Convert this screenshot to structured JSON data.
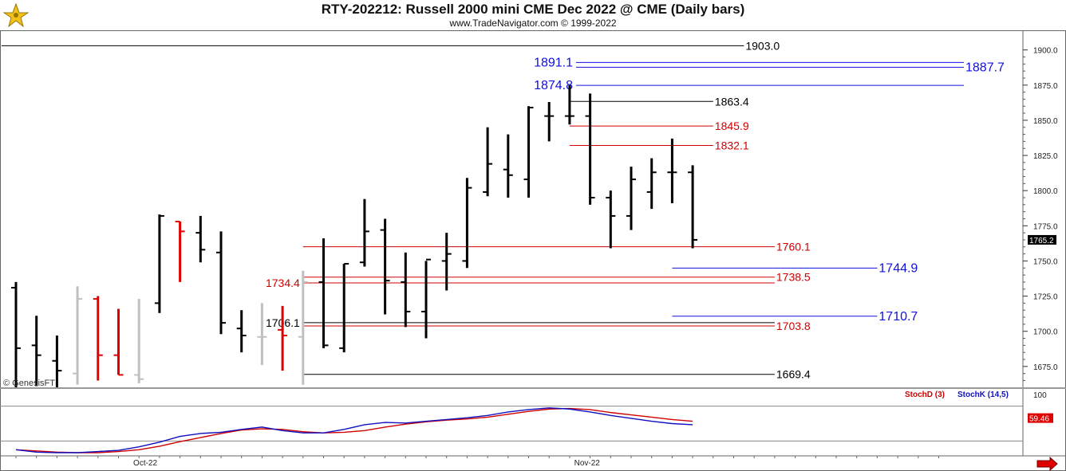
{
  "header": {
    "title": "RTY-202212:  Russell 2000 mini CME Dec 2022 @ CME  (Daily bars)",
    "subtitle": "www.TradeNavigator.com © 1999-2022"
  },
  "watermark": "© GenesisFT",
  "colors": {
    "up_bar": "#000000",
    "down_bar": "#e00000",
    "inside_bar": "#c0c0c0",
    "fib_red": "#d00000",
    "fib_blue": "#1010e0",
    "level_black": "#000000",
    "stoch_d": "#d00000",
    "stoch_k": "#1010c0",
    "price_tag_bg": "#000000",
    "stoch_tag_bg": "#e00000"
  },
  "chart_data": [
    {
      "type": "ohlc",
      "title": "RTY-202212:  Russell 2000 mini CME Dec 2022 @ CME  (Daily bars)",
      "y_axis_side": "right",
      "ylim": [
        1663,
        1910
      ],
      "yticks": [
        "1675.0",
        "1700.0",
        "1725.0",
        "1750.0",
        "1775.0",
        "1800.0",
        "1825.0",
        "1850.0",
        "1875.0",
        "1900.0"
      ],
      "x_labels": [
        {
          "label": "Oct-22",
          "bar_index": 6.5
        },
        {
          "label": "Nov-22",
          "bar_index": 28
        }
      ],
      "bars": [
        {
          "o": 1731,
          "h": 1735,
          "l": 1655,
          "c": 1688,
          "color": "up"
        },
        {
          "o": 1690,
          "h": 1711,
          "l": 1661,
          "c": 1683,
          "color": "up"
        },
        {
          "o": 1679,
          "h": 1697,
          "l": 1658,
          "c": 1672,
          "color": "up"
        },
        {
          "o": 1670,
          "h": 1732,
          "l": 1662,
          "c": 1723,
          "color": "inside"
        },
        {
          "o": 1723,
          "h": 1725,
          "l": 1665,
          "c": 1683,
          "color": "down"
        },
        {
          "o": 1683,
          "h": 1716,
          "l": 1669,
          "c": 1669,
          "color": "down"
        },
        {
          "o": 1669,
          "h": 1723,
          "l": 1663,
          "c": 1666,
          "color": "inside"
        },
        {
          "o": 1720,
          "h": 1783,
          "l": 1713,
          "c": 1782,
          "color": "up"
        },
        {
          "o": 1778,
          "h": 1778,
          "l": 1735,
          "c": 1771,
          "color": "down"
        },
        {
          "o": 1770,
          "h": 1782,
          "l": 1749,
          "c": 1758,
          "color": "up"
        },
        {
          "o": 1756,
          "h": 1771,
          "l": 1698,
          "c": 1706,
          "color": "up"
        },
        {
          "o": 1702,
          "h": 1715,
          "l": 1685,
          "c": 1697,
          "color": "up"
        },
        {
          "o": 1696,
          "h": 1720,
          "l": 1676,
          "c": 1696,
          "color": "inside"
        },
        {
          "o": 1701,
          "h": 1718,
          "l": 1672,
          "c": 1697,
          "color": "down"
        },
        {
          "o": 1696,
          "h": 1743,
          "l": 1662,
          "c": 1735,
          "color": "inside"
        },
        {
          "o": 1735,
          "h": 1766,
          "l": 1688,
          "c": 1690,
          "color": "up"
        },
        {
          "o": 1688,
          "h": 1748,
          "l": 1685,
          "c": 1748,
          "color": "up"
        },
        {
          "o": 1749,
          "h": 1794,
          "l": 1746,
          "c": 1771,
          "color": "up"
        },
        {
          "o": 1772,
          "h": 1780,
          "l": 1712,
          "c": 1736,
          "color": "up"
        },
        {
          "o": 1735,
          "h": 1756,
          "l": 1703,
          "c": 1714,
          "color": "up"
        },
        {
          "o": 1714,
          "h": 1750,
          "l": 1695,
          "c": 1751,
          "color": "up"
        },
        {
          "o": 1750,
          "h": 1770,
          "l": 1729,
          "c": 1755,
          "color": "up"
        },
        {
          "o": 1750,
          "h": 1809,
          "l": 1745,
          "c": 1802,
          "color": "up"
        },
        {
          "o": 1799,
          "h": 1845,
          "l": 1796,
          "c": 1819,
          "color": "up"
        },
        {
          "o": 1815,
          "h": 1840,
          "l": 1795,
          "c": 1811,
          "color": "up"
        },
        {
          "o": 1808,
          "h": 1860,
          "l": 1795,
          "c": 1859,
          "color": "up"
        },
        {
          "o": 1853,
          "h": 1863,
          "l": 1835,
          "c": 1853,
          "color": "up"
        },
        {
          "o": 1853,
          "h": 1875,
          "l": 1847,
          "c": 1853,
          "color": "up"
        },
        {
          "o": 1853,
          "h": 1869,
          "l": 1790,
          "c": 1795,
          "color": "up"
        },
        {
          "o": 1795,
          "h": 1800,
          "l": 1759,
          "c": 1782,
          "color": "up"
        },
        {
          "o": 1782,
          "h": 1817,
          "l": 1772,
          "c": 1808,
          "color": "up"
        },
        {
          "o": 1799,
          "h": 1823,
          "l": 1787,
          "c": 1813,
          "color": "up"
        },
        {
          "o": 1813,
          "h": 1837,
          "l": 1791,
          "c": 1813,
          "color": "up"
        },
        {
          "o": 1813,
          "h": 1818,
          "l": 1759,
          "c": 1765,
          "color": "up"
        }
      ],
      "last_price_label": "1765.2",
      "levels": [
        {
          "value": 1903.0,
          "label": "1903.0",
          "color": "black",
          "from_bar": -1,
          "to_bar": 35.5,
          "label_side": "right"
        },
        {
          "value": 1891.1,
          "label": "1891.1",
          "color": "blue",
          "from_bar": 27,
          "to_bar": 42,
          "label_side": "left"
        },
        {
          "value": 1887.7,
          "label": "1887.7",
          "color": "blue",
          "from_bar": 27,
          "to_bar": 42,
          "label_side": "right"
        },
        {
          "value": 1874.8,
          "label": "1874.8",
          "color": "blue",
          "from_bar": 27,
          "to_bar": 42,
          "label_side": "left"
        },
        {
          "value": 1863.4,
          "label": "1863.4",
          "color": "black",
          "from_bar": 27,
          "to_bar": 34,
          "label_side": "right"
        },
        {
          "value": 1845.9,
          "label": "1845.9",
          "color": "red",
          "from_bar": 27,
          "to_bar": 34,
          "label_side": "right"
        },
        {
          "value": 1832.1,
          "label": "1832.1",
          "color": "red",
          "from_bar": 27,
          "to_bar": 34,
          "label_side": "right"
        },
        {
          "value": 1760.1,
          "label": "1760.1",
          "color": "red",
          "from_bar": 14,
          "to_bar": 37,
          "label_side": "right"
        },
        {
          "value": 1744.9,
          "label": "1744.9",
          "color": "blue",
          "from_bar": 32,
          "to_bar": 42,
          "label_side": "right"
        },
        {
          "value": 1738.5,
          "label": "1738.5",
          "color": "red",
          "from_bar": 14,
          "to_bar": 37,
          "label_side": "right"
        },
        {
          "value": 1734.4,
          "label": "1734.4",
          "color": "red",
          "from_bar": 14,
          "to_bar": 37,
          "label_side": "left"
        },
        {
          "value": 1710.7,
          "label": "1710.7",
          "color": "blue",
          "from_bar": 32,
          "to_bar": 42,
          "label_side": "right"
        },
        {
          "value": 1706.1,
          "label": "1706.1",
          "color": "black",
          "from_bar": 14,
          "to_bar": 37,
          "label_side": "left"
        },
        {
          "value": 1703.8,
          "label": "1703.8",
          "color": "red",
          "from_bar": 14,
          "to_bar": 37,
          "label_side": "right"
        },
        {
          "value": 1669.4,
          "label": "1669.4",
          "color": "black",
          "from_bar": 14,
          "to_bar": 37,
          "label_side": "right"
        }
      ]
    },
    {
      "type": "line",
      "title": "",
      "ylim": [
        0,
        100
      ],
      "yticks": [
        "100"
      ],
      "legend": [
        "StochD (3)",
        "StochK (14,5)"
      ],
      "legend_placement": "top-right",
      "last_value_label": "59.46",
      "series": [
        {
          "name": "StochD (3)",
          "color": "red",
          "values": [
            5,
            3,
            1,
            0,
            0,
            2,
            5,
            11,
            19,
            26,
            33,
            39,
            41,
            40,
            36,
            34,
            35,
            38,
            44,
            49,
            53,
            56,
            58,
            61,
            66,
            71,
            75,
            76,
            74,
            69,
            65,
            61,
            57,
            54
          ]
        },
        {
          "name": "StochK (14,5)",
          "color": "blue",
          "values": [
            5,
            1,
            0,
            0,
            2,
            4,
            10,
            18,
            28,
            33,
            35,
            40,
            44,
            38,
            34,
            34,
            40,
            48,
            52,
            51,
            54,
            57,
            60,
            64,
            70,
            74,
            77,
            75,
            70,
            64,
            59,
            54,
            50,
            48
          ]
        }
      ]
    }
  ]
}
